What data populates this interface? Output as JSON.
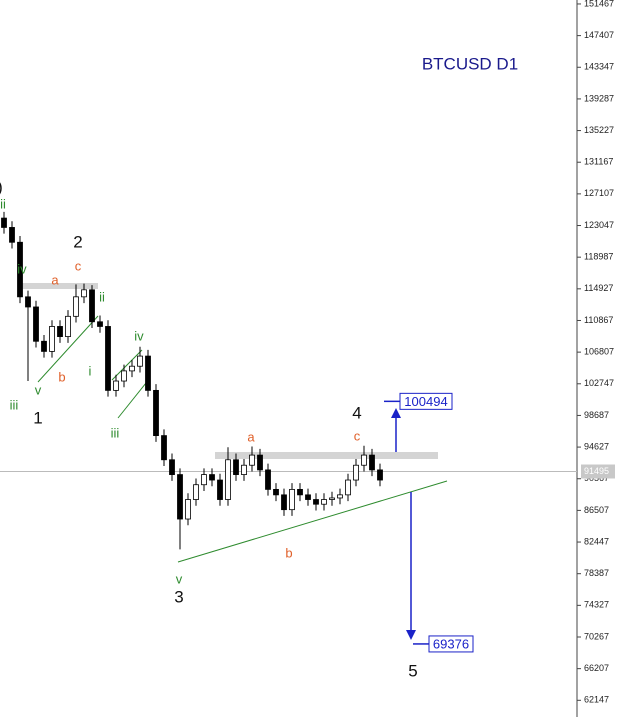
{
  "chart_data": {
    "type": "candlestick",
    "title": "BTCUSD D1",
    "open": [
      124000,
      122800,
      120900,
      113900,
      112600,
      108200,
      106900,
      110100,
      108800,
      111400,
      113900,
      114800,
      110700,
      110100,
      101900,
      103100,
      104400,
      105000,
      106300,
      101900,
      96100,
      93000,
      91100,
      85400,
      87900,
      89800,
      91100,
      90400,
      87900,
      93000,
      91100,
      92300,
      93600,
      91700,
      89200,
      88500,
      86600,
      89200,
      88500,
      87900,
      87300,
      87900,
      88100,
      88500,
      90400,
      92300,
      93600,
      91700
    ],
    "high": [
      124800,
      123600,
      121700,
      114700,
      113400,
      109000,
      110900,
      110900,
      112200,
      115500,
      115600,
      115400,
      111500,
      110900,
      103900,
      105200,
      105800,
      107500,
      107100,
      102700,
      96900,
      93800,
      91900,
      88700,
      90600,
      91900,
      91900,
      91200,
      94600,
      93800,
      93100,
      94700,
      94400,
      92500,
      90000,
      89300,
      90000,
      90000,
      89300,
      88700,
      88700,
      88900,
      89300,
      91200,
      93100,
      94800,
      94400,
      92500
    ],
    "low": [
      122000,
      120100,
      113100,
      103100,
      107400,
      106100,
      106100,
      108000,
      108000,
      110600,
      113100,
      109900,
      109300,
      101100,
      101100,
      102300,
      103600,
      104200,
      101100,
      95300,
      92200,
      90300,
      81500,
      84600,
      87100,
      89000,
      89600,
      87100,
      87100,
      90300,
      90300,
      91500,
      90900,
      88400,
      87700,
      85800,
      85800,
      87700,
      87100,
      86500,
      86500,
      87100,
      87300,
      87700,
      89600,
      91500,
      90900,
      89600
    ],
    "close": [
      122800,
      120900,
      113900,
      112600,
      108200,
      106900,
      110100,
      108800,
      111400,
      113900,
      114800,
      110700,
      110100,
      101900,
      103100,
      104400,
      105000,
      106300,
      101900,
      96100,
      93000,
      91100,
      85400,
      87900,
      89800,
      91100,
      90400,
      87900,
      93000,
      91100,
      92300,
      93600,
      91700,
      89200,
      88500,
      86600,
      89200,
      88500,
      87900,
      87300,
      87900,
      88100,
      88500,
      90400,
      92300,
      93600,
      91700,
      90400
    ],
    "up_color": "#ffffff",
    "down_color": "#000000",
    "ylim": [
      60005,
      151975
    ],
    "yticks": [
      151467,
      147407,
      143347,
      139287,
      135227,
      131167,
      127107,
      123047,
      118987,
      114927,
      110867,
      106807,
      102747,
      98687,
      94627,
      90567,
      86507,
      82447,
      78387,
      74327,
      70267,
      66207,
      62147
    ],
    "last_price": 91495,
    "targets": [
      100494,
      69376
    ],
    "annotations": [
      {
        "text": ")",
        "color": "#111111"
      },
      {
        "text": "ii",
        "color": "#2e8b2e"
      },
      {
        "text": "2",
        "color": "#111111"
      },
      {
        "text": "c",
        "color": "#e0602a"
      },
      {
        "text": "iv",
        "color": "#2e8b2e"
      },
      {
        "text": "a",
        "color": "#e0602a"
      },
      {
        "text": "ii",
        "color": "#2e8b2e"
      },
      {
        "text": "i",
        "color": "#2e8b2e"
      },
      {
        "text": "v",
        "color": "#2e8b2e"
      },
      {
        "text": "b",
        "color": "#e0602a"
      },
      {
        "text": "iii",
        "color": "#2e8b2e"
      },
      {
        "text": "1",
        "color": "#111111"
      },
      {
        "text": "iv",
        "color": "#2e8b2e"
      },
      {
        "text": "iii",
        "color": "#2e8b2e"
      },
      {
        "text": "4",
        "color": "#111111"
      },
      {
        "text": "a",
        "color": "#e0602a"
      },
      {
        "text": "c",
        "color": "#e0602a"
      },
      {
        "text": "v",
        "color": "#2e8b2e"
      },
      {
        "text": "3",
        "color": "#111111"
      },
      {
        "text": "b",
        "color": "#e0602a"
      },
      {
        "text": "5",
        "color": "#111111"
      }
    ]
  }
}
